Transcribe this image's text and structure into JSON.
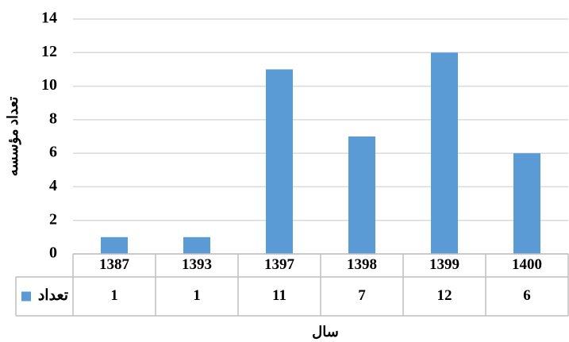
{
  "chart_data": {
    "type": "bar",
    "categories": [
      "1387",
      "1393",
      "1397",
      "1398",
      "1399",
      "1400"
    ],
    "series": [
      {
        "name": "تعداد",
        "color": "#5b9bd5",
        "values": [
          1,
          1,
          11,
          7,
          12,
          6
        ]
      }
    ],
    "x_label": "سال",
    "y_label": "تعداد مؤسسه",
    "ylim": [
      0,
      14
    ],
    "yticks": [
      0,
      2,
      4,
      6,
      8,
      10,
      12,
      14
    ],
    "grid": true
  }
}
